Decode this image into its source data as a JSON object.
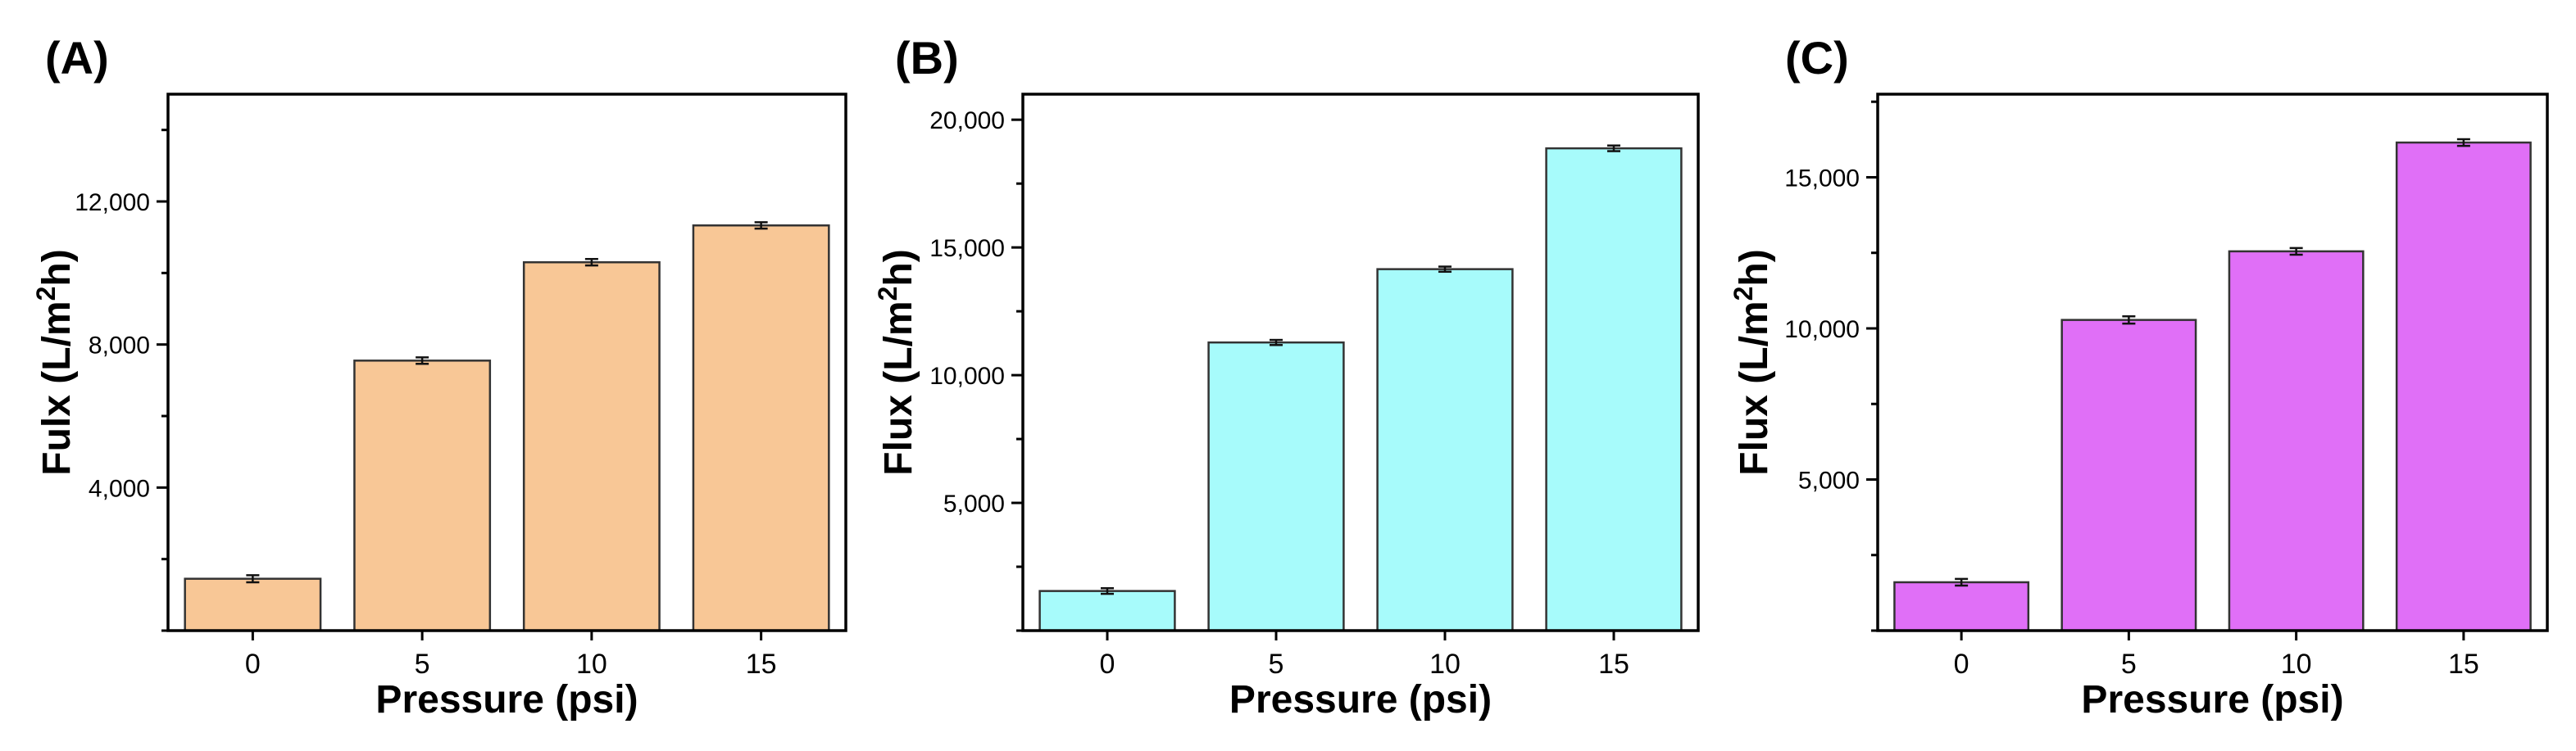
{
  "chart_data": [
    {
      "panel_label": "(A)",
      "type": "bar",
      "xlabel": "Pressure (psi)",
      "ylabel": "Fulx (L/m²h)",
      "ylabel_main": "Fulx (L/m",
      "ylabel_sup": "2",
      "ylabel_end": "h)",
      "categories": [
        "0",
        "5",
        "10",
        "15"
      ],
      "values": [
        1450,
        7550,
        10300,
        11330
      ],
      "errors": [
        100,
        90,
        90,
        90
      ],
      "yticks": [
        4000,
        8000,
        12000
      ],
      "ytick_labels": [
        "4,000",
        "8,000",
        "12,000"
      ],
      "minor_yticks": [
        0,
        2000,
        6000,
        10000,
        14000
      ],
      "ylim": [
        0,
        15000
      ],
      "bar_color": "#f8c796",
      "grid": false
    },
    {
      "panel_label": "(B)",
      "type": "bar",
      "xlabel": "Pressure (psi)",
      "ylabel": "Flux (L/m²h)",
      "ylabel_main": "Flux (L/m",
      "ylabel_sup": "2",
      "ylabel_end": "h)",
      "categories": [
        "0",
        "5",
        "10",
        "15"
      ],
      "values": [
        1550,
        11280,
        14150,
        18880
      ],
      "errors": [
        110,
        100,
        100,
        110
      ],
      "yticks": [
        5000,
        10000,
        15000,
        20000
      ],
      "ytick_labels": [
        "5,000",
        "10,000",
        "15,000",
        "20,000"
      ],
      "minor_yticks": [
        0,
        2500,
        7500,
        12500,
        17500
      ],
      "ylim": [
        0,
        21000
      ],
      "bar_color": "#a7fbfb",
      "grid": false
    },
    {
      "panel_label": "(C)",
      "type": "bar",
      "xlabel": "Pressure (psi)",
      "ylabel": "Flux (L/m²h)",
      "ylabel_main": "Flux (L/m",
      "ylabel_sup": "2",
      "ylabel_end": "h)",
      "categories": [
        "0",
        "5",
        "10",
        "15"
      ],
      "values": [
        1600,
        10280,
        12550,
        16150
      ],
      "errors": [
        110,
        120,
        110,
        110
      ],
      "yticks": [
        5000,
        10000,
        15000
      ],
      "ytick_labels": [
        "5,000",
        "10,000",
        "15,000"
      ],
      "minor_yticks": [
        0,
        2500,
        7500,
        12500,
        17500
      ],
      "ylim": [
        0,
        17750
      ],
      "bar_color": "#e06ff7",
      "grid": false
    }
  ]
}
